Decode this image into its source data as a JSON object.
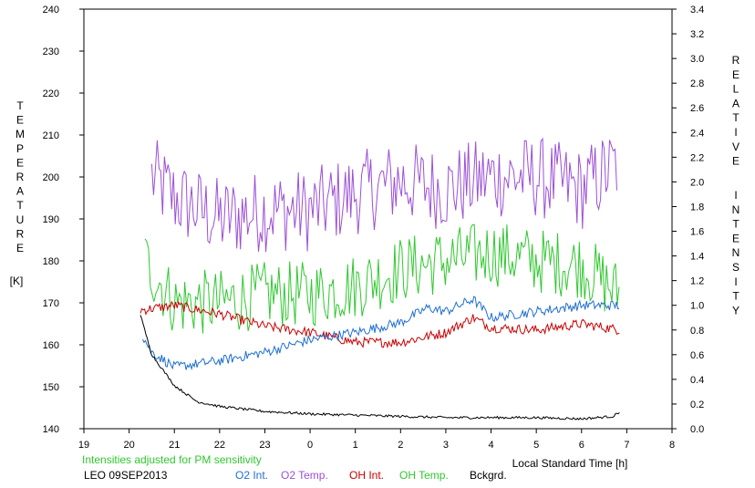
{
  "chart_data": {
    "type": "line",
    "x_axis": {
      "label": "Local Standard Time [h]",
      "range": [
        19,
        32
      ],
      "ticks": [
        19,
        20,
        21,
        22,
        23,
        24,
        25,
        26,
        27,
        28,
        29,
        30,
        31,
        32
      ],
      "tick_labels": [
        "19",
        "20",
        "21",
        "22",
        "23",
        "0",
        "1",
        "2",
        "3",
        "4",
        "5",
        "6",
        "7",
        "8"
      ]
    },
    "y_left": {
      "label_letters": [
        "T",
        "E",
        "M",
        "P",
        "E",
        "R",
        "A",
        "T",
        "U",
        "R",
        "E"
      ],
      "unit": "[K]",
      "range": [
        140,
        240
      ],
      "ticks": [
        140,
        150,
        160,
        170,
        180,
        190,
        200,
        210,
        220,
        230,
        240
      ]
    },
    "y_right": {
      "label_word1": [
        "R",
        "E",
        "L",
        "A",
        "T",
        "I",
        "V",
        "E"
      ],
      "label_word2": [
        "I",
        "N",
        "T",
        "E",
        "N",
        "S",
        "I",
        "T",
        "Y"
      ],
      "range": [
        0.0,
        3.4
      ],
      "ticks": [
        "0.0",
        "0.2",
        "0.4",
        "0.6",
        "0.8",
        "1.0",
        "1.2",
        "1.4",
        "1.6",
        "1.8",
        "2.0",
        "2.2",
        "2.4",
        "2.6",
        "2.8",
        "3.0",
        "3.2",
        "3.4"
      ]
    },
    "note": "Intensities adjusted for PM sensitivity",
    "station": "LEO 09SEP2013",
    "legend": [
      {
        "label": "O2 Int.",
        "color": "#1f6fd0"
      },
      {
        "label": "O2 Temp.",
        "color": "#9b4fd6"
      },
      {
        "label": "OH Int.",
        "color": "#c80000"
      },
      {
        "label": "OH Temp.",
        "color": "#2ec82e"
      },
      {
        "label": "Bckgrd.",
        "color": "#000000"
      }
    ],
    "series": [
      {
        "name": "O2 Temp.",
        "axis": "left",
        "color": "#9b4fd6",
        "x_range": [
          20.5,
          30.8
        ],
        "noise": 10,
        "x": [
          20.5,
          21,
          22,
          23,
          24,
          25,
          26,
          27,
          28,
          29,
          30,
          30.8
        ],
        "y": [
          200,
          195,
          190,
          192,
          192,
          196,
          199,
          197,
          200,
          200,
          197,
          203
        ]
      },
      {
        "name": "OH Temp.",
        "axis": "left",
        "color": "#2ec82e",
        "x_range": [
          20.35,
          30.85
        ],
        "noise": 8,
        "x": [
          20.35,
          21,
          22,
          23,
          24,
          25,
          26,
          27,
          28,
          29,
          30,
          30.85
        ],
        "y": [
          180,
          170,
          170,
          172,
          172,
          174,
          178,
          180,
          182,
          180,
          179,
          172
        ]
      },
      {
        "name": "OH Int.",
        "axis": "right",
        "color": "#c80000",
        "x_range": [
          20.25,
          30.85
        ],
        "noise": 0.04,
        "x": [
          20.25,
          21,
          22,
          23,
          24,
          25,
          26,
          27,
          27.6,
          28,
          29,
          30,
          30.85
        ],
        "y": [
          0.96,
          1.0,
          0.93,
          0.83,
          0.78,
          0.7,
          0.7,
          0.78,
          0.9,
          0.82,
          0.8,
          0.85,
          0.8
        ]
      },
      {
        "name": "O2 Int.",
        "axis": "right",
        "color": "#1f6fd0",
        "x_range": [
          20.3,
          30.85
        ],
        "noise": 0.04,
        "x": [
          20.3,
          20.5,
          21,
          22,
          23,
          24,
          25,
          26,
          26.6,
          27,
          27.6,
          28,
          29,
          30,
          30.85
        ],
        "y": [
          0.75,
          0.62,
          0.5,
          0.55,
          0.62,
          0.72,
          0.78,
          0.86,
          0.98,
          0.95,
          1.05,
          0.9,
          0.95,
          1.0,
          1.0
        ]
      },
      {
        "name": "Bckgrd.",
        "axis": "right",
        "color": "#000000",
        "x_range": [
          20.25,
          30.85
        ],
        "noise": 0.01,
        "x": [
          20.25,
          20.5,
          21,
          21.5,
          22,
          23,
          24,
          25,
          26,
          27,
          28,
          29,
          30,
          30.7,
          30.85
        ],
        "y": [
          0.92,
          0.6,
          0.35,
          0.22,
          0.18,
          0.14,
          0.12,
          0.11,
          0.1,
          0.09,
          0.09,
          0.09,
          0.08,
          0.1,
          0.14
        ]
      }
    ]
  }
}
